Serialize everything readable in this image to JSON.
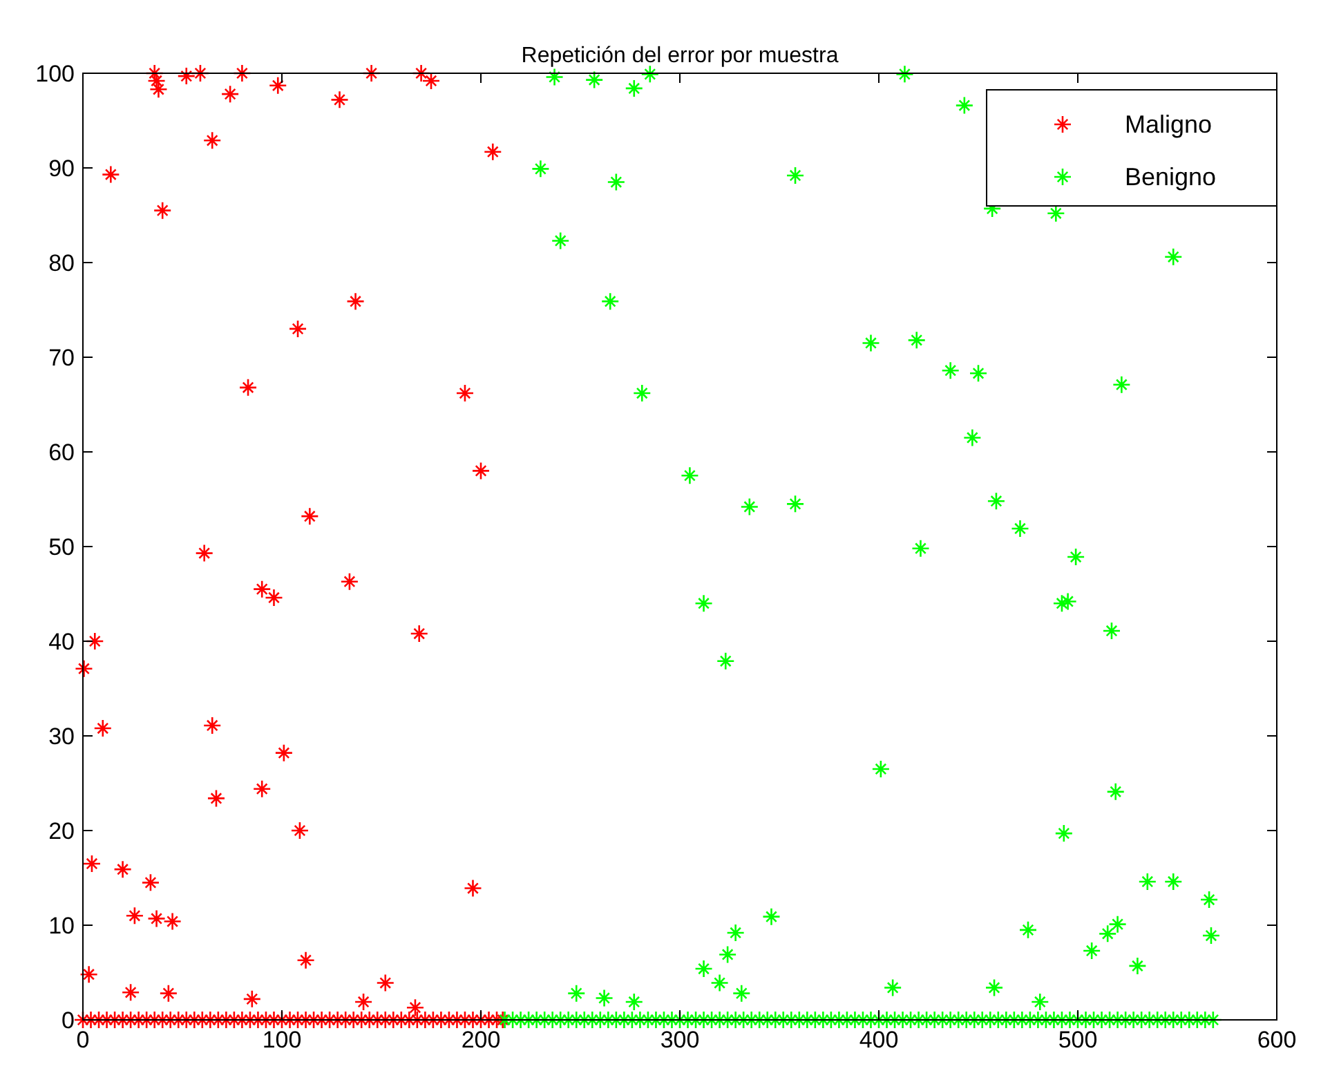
{
  "chart_data": {
    "type": "scatter",
    "title": "Repetición del error por muestra",
    "xlim": [
      0,
      600
    ],
    "ylim": [
      0,
      100
    ],
    "xticks": [
      0,
      100,
      200,
      300,
      400,
      500,
      600
    ],
    "yticks": [
      0,
      10,
      20,
      30,
      40,
      50,
      60,
      70,
      80,
      90,
      100
    ],
    "legend": "top right",
    "marker": "cross",
    "series": [
      {
        "name": "Maligno",
        "color": "#ff0000",
        "x": [
          0.5,
          3,
          4.5,
          6,
          10,
          14,
          20,
          24,
          26,
          34,
          36,
          37,
          38,
          37,
          40,
          43,
          45,
          52,
          59,
          61,
          65,
          65,
          67,
          74,
          80,
          83,
          85,
          90,
          90,
          96,
          98,
          101,
          108,
          109,
          112,
          114,
          129,
          134,
          137,
          141,
          145,
          152,
          167,
          169,
          170,
          175,
          192,
          196,
          200,
          206,
          0,
          4,
          8,
          12,
          16,
          20,
          24,
          28,
          32,
          36,
          40,
          44,
          48,
          52,
          56,
          60,
          64,
          68,
          72,
          76,
          80,
          84,
          88,
          92,
          96,
          100,
          104,
          108,
          112,
          116,
          120,
          124,
          128,
          132,
          136,
          140,
          144,
          148,
          152,
          156,
          160,
          164,
          168,
          172,
          176,
          180,
          184,
          188,
          192,
          196,
          200,
          204,
          208,
          211
        ],
        "values": [
          37.1,
          4.8,
          16.5,
          40,
          30.8,
          89.3,
          15.9,
          2.9,
          11,
          14.5,
          100,
          99.2,
          98.3,
          10.7,
          85.5,
          2.8,
          10.4,
          99.7,
          100,
          49.3,
          31.1,
          92.9,
          23.4,
          97.8,
          100,
          66.8,
          2.2,
          45.5,
          24.4,
          44.6,
          98.7,
          28.2,
          73,
          20,
          6.3,
          53.2,
          97.2,
          46.3,
          75.9,
          1.9,
          100,
          3.9,
          1.3,
          40.8,
          100,
          99.2,
          66.2,
          13.9,
          58,
          91.7,
          0,
          0,
          0,
          0,
          0,
          0,
          0,
          0,
          0,
          0,
          0,
          0,
          0,
          0,
          0,
          0,
          0,
          0,
          0,
          0,
          0,
          0,
          0,
          0,
          0,
          0,
          0,
          0,
          0,
          0,
          0,
          0,
          0,
          0,
          0,
          0,
          0,
          0,
          0,
          0,
          0,
          0,
          0,
          0,
          0,
          0,
          0,
          0,
          0,
          0,
          0,
          0,
          0,
          0
        ]
      },
      {
        "name": "Benigno",
        "color": "#00ff00",
        "x": [
          237,
          257,
          277,
          285,
          413,
          443,
          230,
          268,
          358,
          240,
          548,
          457,
          489,
          265,
          396,
          419,
          436,
          450,
          522,
          281,
          447,
          305,
          335,
          358,
          459,
          471,
          421,
          499,
          492,
          495,
          517,
          312,
          323,
          401,
          519,
          493,
          535,
          548,
          566,
          346,
          475,
          520,
          515,
          567,
          328,
          324,
          312,
          320,
          507,
          530,
          248,
          262,
          277,
          331,
          407,
          458,
          481,
          212,
          216,
          220,
          224,
          228,
          232,
          236,
          240,
          244,
          248,
          252,
          256,
          260,
          264,
          268,
          272,
          276,
          280,
          284,
          288,
          292,
          296,
          300,
          304,
          308,
          312,
          316,
          320,
          324,
          328,
          332,
          336,
          340,
          344,
          348,
          352,
          356,
          360,
          364,
          368,
          372,
          376,
          380,
          384,
          388,
          392,
          396,
          400,
          404,
          408,
          412,
          416,
          420,
          424,
          428,
          432,
          436,
          440,
          444,
          448,
          452,
          456,
          460,
          464,
          468,
          472,
          476,
          480,
          484,
          488,
          492,
          496,
          500,
          504,
          508,
          512,
          516,
          520,
          524,
          528,
          532,
          536,
          540,
          544,
          548,
          552,
          556,
          560,
          564,
          568
        ],
        "values": [
          99.6,
          99.3,
          98.4,
          99.9,
          99.9,
          96.6,
          89.9,
          88.5,
          89.2,
          82.3,
          80.6,
          85.7,
          85.2,
          75.9,
          71.5,
          71.8,
          68.6,
          68.3,
          67.1,
          66.2,
          61.5,
          57.5,
          54.2,
          54.5,
          54.8,
          51.9,
          49.8,
          48.9,
          44,
          44.2,
          41.1,
          44,
          37.9,
          26.5,
          24.1,
          19.7,
          14.6,
          14.6,
          12.7,
          10.9,
          9.5,
          10.1,
          9.1,
          8.9,
          9.2,
          6.9,
          5.4,
          3.9,
          7.3,
          5.7,
          2.8,
          2.3,
          1.9,
          2.8,
          3.4,
          3.4,
          1.9,
          0,
          0,
          0,
          0,
          0,
          0,
          0,
          0,
          0,
          0,
          0,
          0,
          0,
          0,
          0,
          0,
          0,
          0,
          0,
          0,
          0,
          0,
          0,
          0,
          0,
          0,
          0,
          0,
          0,
          0,
          0,
          0,
          0,
          0,
          0,
          0,
          0,
          0,
          0,
          0,
          0,
          0,
          0,
          0,
          0,
          0,
          0,
          0,
          0,
          0,
          0,
          0,
          0,
          0,
          0,
          0,
          0,
          0,
          0,
          0,
          0,
          0,
          0,
          0,
          0,
          0,
          0,
          0,
          0,
          0,
          0,
          0,
          0,
          0,
          0,
          0,
          0,
          0,
          0,
          0,
          0,
          0,
          0,
          0,
          0,
          0,
          0,
          0,
          0,
          0
        ]
      }
    ]
  }
}
